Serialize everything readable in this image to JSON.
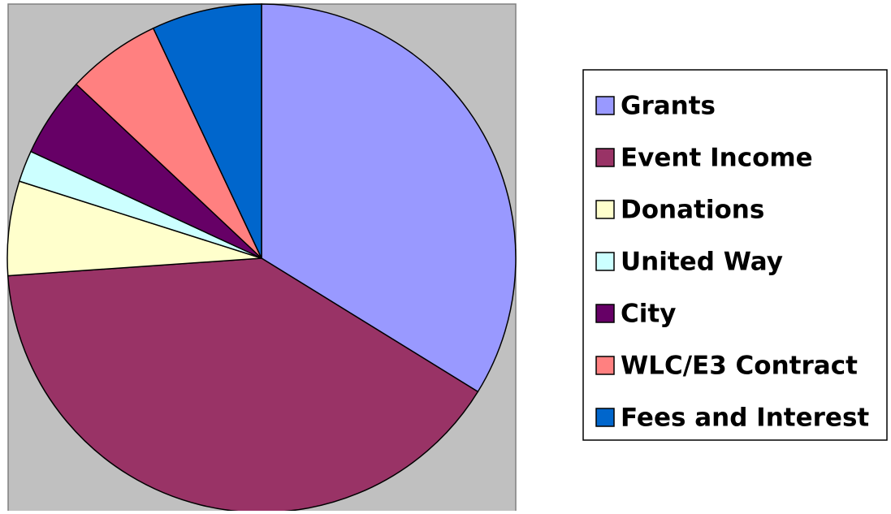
{
  "chart_data": {
    "type": "pie",
    "legend": "right",
    "categories": [
      "Grants",
      "Event Income",
      "Donations",
      "United Way",
      "City",
      "WLC/E3 Contract",
      "Fees and Interest"
    ],
    "values": [
      33.8,
      40.1,
      6.0,
      2.0,
      5.1,
      6.0,
      7.0
    ],
    "colors": [
      "#9999ff",
      "#993366",
      "#ffffcc",
      "#ccffff",
      "#660066",
      "#ff8080",
      "#0066cc"
    ]
  }
}
